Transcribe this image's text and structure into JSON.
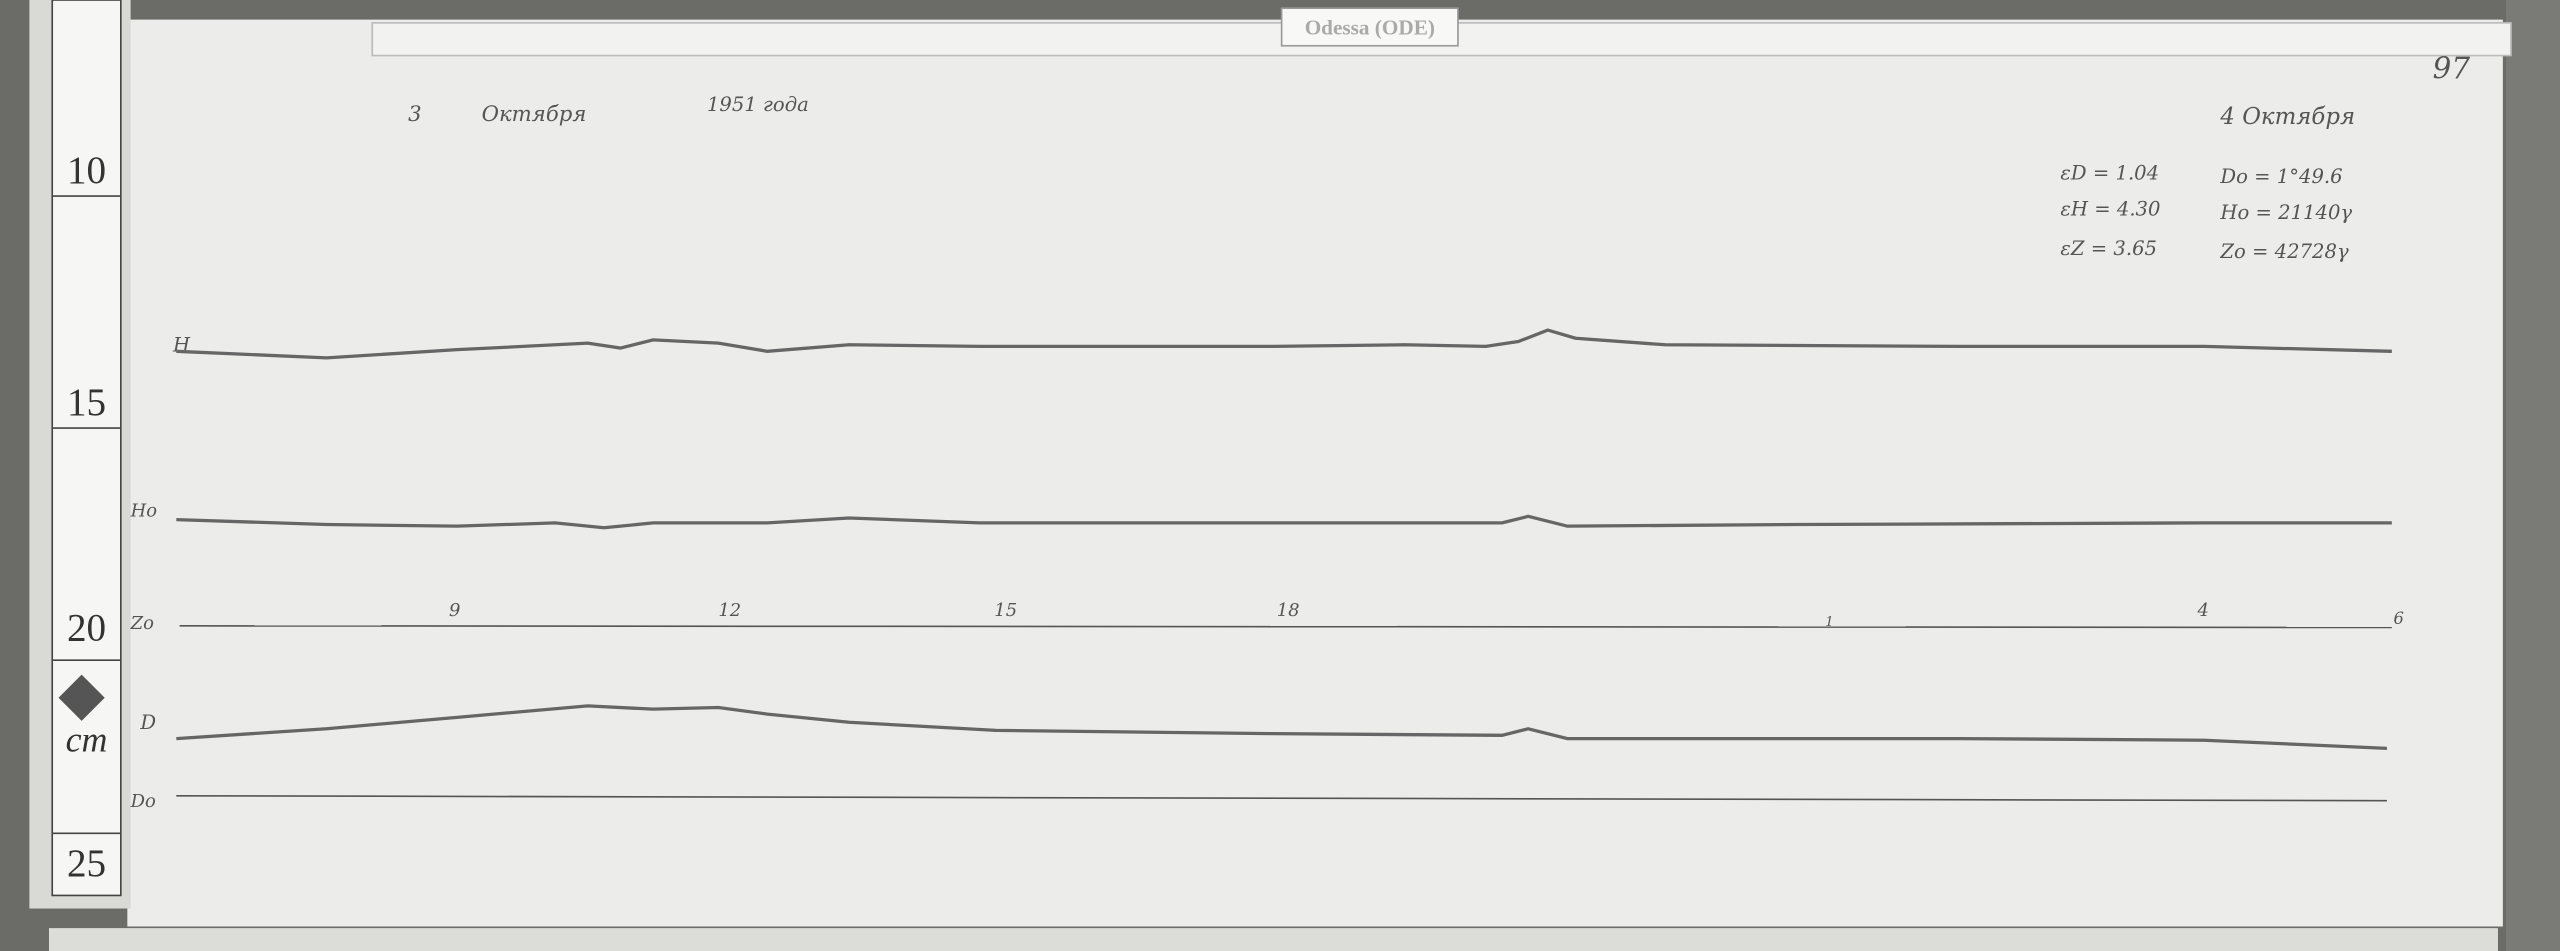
{
  "header": {
    "label": "Odessa (ODE)",
    "page": "97"
  },
  "ruler": {
    "ticks": [
      "10",
      "15",
      "20",
      "25"
    ],
    "unit": "cm"
  },
  "sheet": {
    "date_left": [
      "3",
      "Октября",
      "1951 года"
    ],
    "date_right": "4 Октября",
    "constants": [
      [
        "εD = 1.04",
        "Do = 1°49.6"
      ],
      [
        "εH = 4.30",
        "Ho = 21140γ"
      ],
      [
        "εZ = 3.65",
        "Zo = 42728γ"
      ]
    ],
    "trace_labels": {
      "h": "H",
      "ho": "Ho",
      "z": "Zo",
      "d": "D",
      "do": "Do"
    },
    "hours": [
      "9",
      "12",
      "15",
      "18",
      "1",
      "4",
      "6"
    ]
  }
}
